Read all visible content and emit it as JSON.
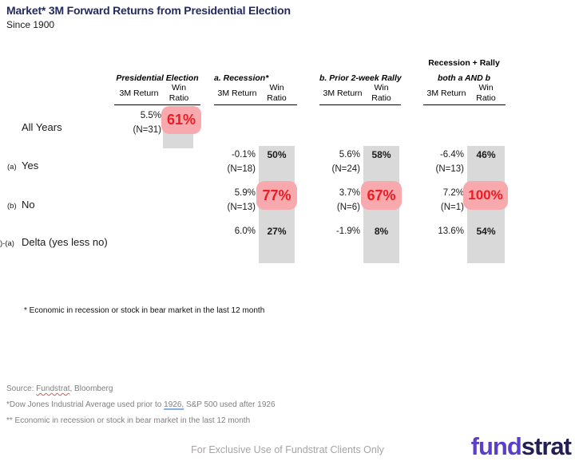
{
  "title": "Market* 3M Forward Returns from Presidential Election",
  "subtitle": "Since 1900",
  "colors": {
    "title_navy": "#222a5f",
    "badge_pink": "#f8a9ad",
    "badge_red": "#ed1c24",
    "bar_gray": "#d9d9d9",
    "logo_purple": "#5b3ec9",
    "logo_navy": "#221f54",
    "source_gray": "#808080",
    "footer_gray": "#a8a3a3"
  },
  "table": {
    "headers": {
      "pe": {
        "title": "Presidential Election",
        "ret": "3M Return",
        "win1": "Win",
        "win2": "Ratio"
      },
      "rec": {
        "title": "a. Recession*",
        "ret": "3M Return",
        "win1": "Win",
        "win2": "Ratio"
      },
      "rally": {
        "title": "b. Prior 2-week Rally",
        "ret": "3M Return",
        "win1": "Win",
        "win2": "Ratio"
      },
      "both": {
        "title1": "Recession + Rally",
        "title2": "both a AND b",
        "ret": "3M Return",
        "win1": "Win",
        "win2": "Ratio"
      }
    },
    "rows": {
      "all_years": {
        "label": "All Years",
        "pe": {
          "ret": "5.5%",
          "n": "(N=31)",
          "win": "61%"
        }
      },
      "yes": {
        "prefix": "(a)",
        "label": "Yes",
        "rec": {
          "ret": "-0.1%",
          "n": "(N=18)",
          "win": "50%"
        },
        "rally": {
          "ret": "5.6%",
          "n": "(N=24)",
          "win": "58%"
        },
        "both": {
          "ret": "-6.4%",
          "n": "(N=13)",
          "win": "46%"
        }
      },
      "no": {
        "prefix": "(b)",
        "label": "No",
        "rec": {
          "ret": "5.9%",
          "n": "(N=13)",
          "win": "77%"
        },
        "rally": {
          "ret": "3.7%",
          "n": "(N=6)",
          "win": "67%"
        },
        "both": {
          "ret": "7.2%",
          "n": "(N=1)",
          "win": "100%"
        }
      },
      "delta": {
        "prefix": ")-(a)",
        "label": "Delta (yes less no)",
        "rec": {
          "ret": "6.0%",
          "win": "27%"
        },
        "rally": {
          "ret": "-1.9%",
          "win": "8%"
        },
        "both": {
          "ret": "13.6%",
          "win": "54%"
        }
      }
    }
  },
  "footnote": "* Economic in recession or stock in bear market in the last 12 month",
  "source": {
    "line1_pre": "Source: ",
    "line1_fundstrat": "Fundstrat",
    "line1_post": ", Bloomberg",
    "line2_pre": "*Dow Jones Industrial Average used prior to ",
    "line2_year": "1926,",
    "line2_post": " S&P 500 used after 1926",
    "line3": "** Economic in recession or stock in bear market in the last 12 month"
  },
  "footer_text": "For Exclusive Use of Fundstrat Clients Only",
  "logo": {
    "fund": "fund",
    "strat": "strat"
  },
  "chart_data": {
    "type": "table",
    "title": "Market* 3M Forward Returns from Presidential Election",
    "subtitle": "Since 1900",
    "columns": [
      "Presidential Election",
      "a. Recession*",
      "b. Prior 2-week Rally",
      "Recession + Rally both a AND b"
    ],
    "metrics": [
      "3M Return",
      "Win Ratio",
      "N"
    ],
    "rows": [
      {
        "label": "All Years",
        "presidential_election": {
          "return_pct": 5.5,
          "win_ratio_pct": 61,
          "n": 31,
          "highlighted": true
        }
      },
      {
        "label": "(a) Yes",
        "recession": {
          "return_pct": -0.1,
          "win_ratio_pct": 50,
          "n": 18
        },
        "prior_2week_rally": {
          "return_pct": 5.6,
          "win_ratio_pct": 58,
          "n": 24
        },
        "recession_and_rally": {
          "return_pct": -6.4,
          "win_ratio_pct": 46,
          "n": 13
        }
      },
      {
        "label": "(b) No",
        "recession": {
          "return_pct": 5.9,
          "win_ratio_pct": 77,
          "n": 13,
          "highlighted": true
        },
        "prior_2week_rally": {
          "return_pct": 3.7,
          "win_ratio_pct": 67,
          "n": 6,
          "highlighted": true
        },
        "recession_and_rally": {
          "return_pct": 7.2,
          "win_ratio_pct": 100,
          "n": 1,
          "highlighted": true
        }
      },
      {
        "label": "(b)-(a) Delta (yes less no)",
        "recession": {
          "return_pct": 6.0,
          "win_ratio_pct": 27
        },
        "prior_2week_rally": {
          "return_pct": -1.9,
          "win_ratio_pct": 8
        },
        "recession_and_rally": {
          "return_pct": 13.6,
          "win_ratio_pct": 54
        }
      }
    ],
    "layout": {
      "grid": false,
      "highlight_style": "pink rounded badge with red bold text",
      "win_ratio_columns_shaded": true
    }
  }
}
